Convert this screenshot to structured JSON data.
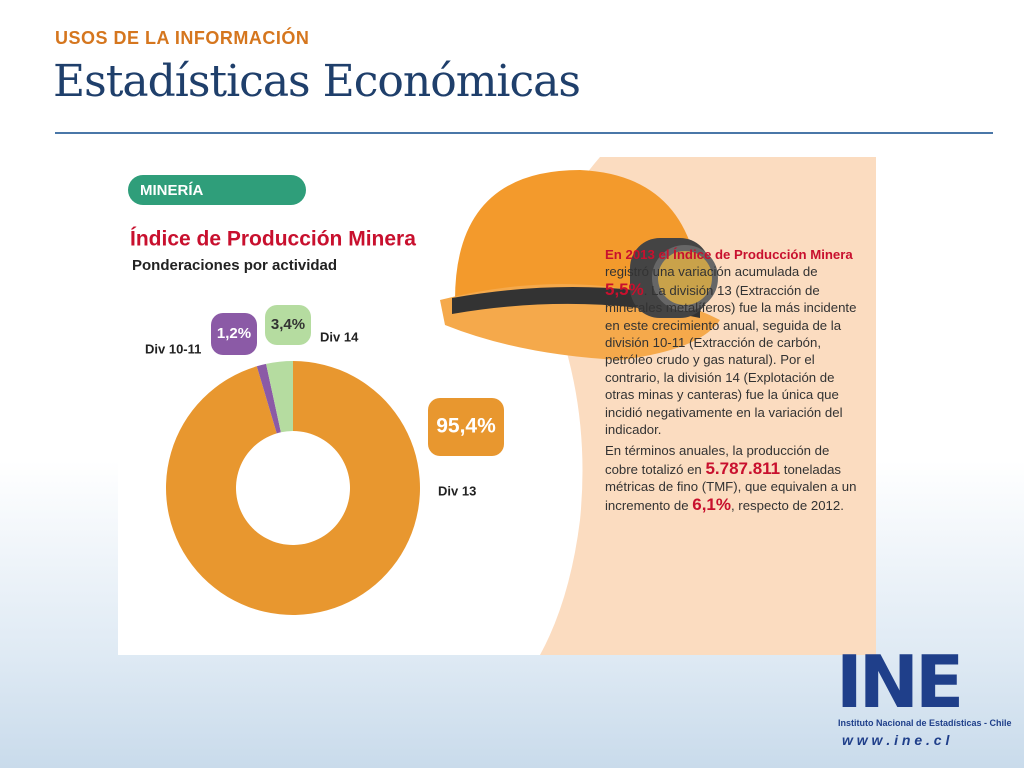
{
  "header": {
    "kicker": "USOS DE LA INFORMACIÓN",
    "title": "Estadísticas Económicas"
  },
  "panel": {
    "tag": "MINERÍA"
  },
  "chart_data": {
    "type": "pie",
    "donut": true,
    "title": "Índice de Producción Minera",
    "subtitle": "Ponderaciones por actividad",
    "categories": [
      "Div 13",
      "Div 10-11",
      "Div 14"
    ],
    "values": [
      95.4,
      1.2,
      3.4
    ],
    "value_labels": [
      "95,4%",
      "1,2%",
      "3,4%"
    ],
    "colors": [
      "#e8972f",
      "#8b5aa6",
      "#b5dca0"
    ]
  },
  "text": {
    "paragraph1": [
      "En 2013 el Índice de Producción Minera",
      " registró una variación acumulada de ",
      "5,5%",
      ". La división 13 (Extracción de minerales metalíferos) fue la más incidente en este crecimiento anual, seguida de la división 10-11 (Extracción de carbón, petróleo crudo y gas natural). Por el contrario, la división 14 (Explotación de otras minas y canteras) fue la única que incidió negativamente en la variación del indicador."
    ],
    "paragraph2": [
      "En términos anuales, la producción de cobre totalizó en ",
      "5.787.811",
      " toneladas métricas de fino (TMF), que equivalen a un incremento de ",
      "6,1%",
      ", respecto de 2012."
    ]
  },
  "logo": {
    "mark": "INE",
    "name": "Instituto Nacional de Estadísticas - Chile",
    "url": "w w w . i n e . c l"
  }
}
